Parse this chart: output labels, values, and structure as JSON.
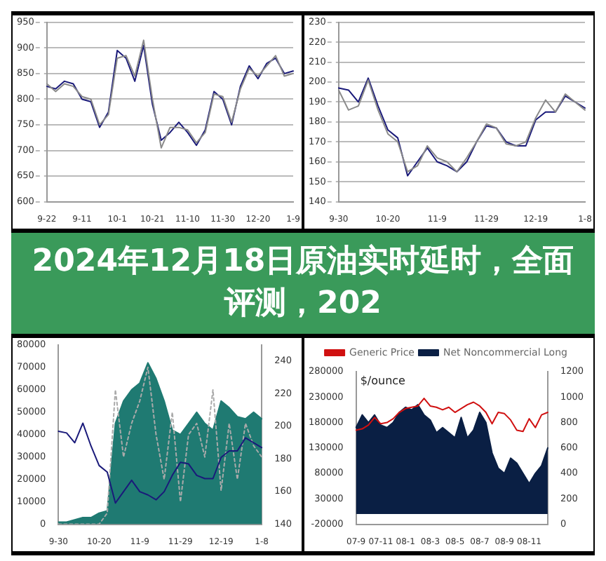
{
  "chart_data": [
    {
      "type": "line",
      "categories": [
        "9-22",
        null,
        null,
        null,
        "9-11",
        null,
        null,
        null,
        "10-1",
        null,
        null,
        null,
        "10-21",
        null,
        null,
        null,
        "11-10",
        null,
        null,
        null,
        "11-30",
        null,
        null,
        null,
        "12-20",
        null,
        null,
        null,
        "1-9"
      ],
      "ylim": [
        600,
        950
      ],
      "yticks": [
        600,
        650,
        700,
        750,
        800,
        850,
        900,
        950
      ],
      "grid": "y",
      "marker": "none",
      "legend": false,
      "series": [
        {
          "color": "#8a8a8a",
          "values": [
            830,
            815,
            830,
            825,
            805,
            800,
            750,
            770,
            880,
            885,
            845,
            915,
            800,
            705,
            745,
            745,
            740,
            715,
            735,
            810,
            805,
            755,
            820,
            860,
            845,
            865,
            885,
            845,
            850
          ]
        },
        {
          "color": "#1a1a7a",
          "values": [
            825,
            820,
            835,
            830,
            800,
            795,
            745,
            775,
            895,
            880,
            835,
            905,
            790,
            720,
            735,
            755,
            735,
            710,
            740,
            815,
            800,
            750,
            825,
            865,
            840,
            870,
            880,
            850,
            855
          ]
        }
      ]
    },
    {
      "type": "line",
      "categories": [
        "9-30",
        null,
        null,
        null,
        null,
        "10-20",
        null,
        null,
        null,
        null,
        "11-9",
        null,
        null,
        null,
        null,
        "11-29",
        null,
        null,
        null,
        null,
        "12-19",
        null,
        null,
        null,
        null,
        "1-8"
      ],
      "ylim": [
        140,
        230
      ],
      "yticks": [
        140,
        150,
        160,
        170,
        180,
        190,
        200,
        210,
        220,
        230
      ],
      "grid": "y",
      "marker": "none",
      "legend": false,
      "series": [
        {
          "color": "#8a8a8a",
          "values": [
            196,
            186,
            188,
            201,
            186,
            174,
            170,
            155,
            158,
            168,
            162,
            160,
            155,
            162,
            170,
            179,
            177,
            169,
            168,
            170,
            182,
            191,
            185,
            194,
            190,
            186
          ]
        },
        {
          "color": "#1a1a7a",
          "values": [
            197,
            196,
            190,
            202,
            188,
            176,
            172,
            153,
            160,
            167,
            160,
            158,
            155,
            160,
            170,
            178,
            177,
            170,
            168,
            168,
            181,
            185,
            185,
            193,
            190,
            187
          ]
        }
      ]
    },
    {
      "type": "other",
      "title": "2024年12月18日原油实时延时，全面评测，202"
    },
    {
      "type": "line",
      "categories": [
        "9-30",
        null,
        null,
        null,
        null,
        "10-20",
        null,
        null,
        null,
        null,
        "11-9",
        null,
        null,
        null,
        null,
        "11-29",
        null,
        null,
        null,
        null,
        "12-19",
        null,
        null,
        null,
        null,
        "1-8"
      ],
      "ylim": [
        0,
        80000
      ],
      "yticks": [
        0,
        10000,
        20000,
        30000,
        40000,
        50000,
        60000,
        70000,
        80000
      ],
      "y2lim": [
        140,
        250
      ],
      "y2ticks": [
        140,
        160,
        180,
        200,
        220,
        240
      ],
      "grid": false,
      "marker": "none",
      "legend": false,
      "series": [
        {
          "type": "area",
          "color": "#1f7a72",
          "values": [
            1000,
            1000,
            2000,
            3000,
            3000,
            5000,
            6000,
            45000,
            55000,
            60000,
            63000,
            72000,
            65000,
            55000,
            42000,
            40000,
            45000,
            50000,
            45000,
            42000,
            55000,
            52000,
            48000,
            47000,
            50000,
            47000
          ]
        },
        {
          "color": "#1a1a7a",
          "axis": "y2",
          "values": [
            197,
            196,
            190,
            202,
            188,
            176,
            172,
            153,
            160,
            167,
            160,
            158,
            155,
            160,
            170,
            178,
            177,
            170,
            168,
            168,
            181,
            185,
            185,
            193,
            190,
            187
          ]
        },
        {
          "color": "#aaaaaa",
          "line_style": "dotted",
          "values": [
            0,
            0,
            0,
            0,
            0,
            0,
            5000,
            60000,
            30000,
            45000,
            55000,
            70000,
            40000,
            20000,
            50000,
            10000,
            40000,
            45000,
            30000,
            60000,
            15000,
            45000,
            20000,
            45000,
            35000,
            30000
          ]
        }
      ]
    },
    {
      "type": "line",
      "ylabel": "$/ounce",
      "categories": [
        "07-9",
        null,
        null,
        null,
        "07-11",
        null,
        null,
        null,
        "08-1",
        null,
        null,
        null,
        "08-3",
        null,
        null,
        null,
        "08-5",
        null,
        null,
        null,
        "08-7",
        null,
        null,
        null,
        "08-9",
        null,
        null,
        null,
        "08-11",
        null,
        null,
        null
      ],
      "ylim": [
        -20000,
        280000
      ],
      "yticks": [
        -20000,
        30000,
        80000,
        130000,
        180000,
        230000,
        280000
      ],
      "y2lim": [
        0,
        1200
      ],
      "y2ticks": [
        0,
        200,
        400,
        600,
        800,
        1000,
        1200
      ],
      "grid": false,
      "marker": "none",
      "legend": "top",
      "series": [
        {
          "type": "area",
          "name": "Net Noncommercial Long",
          "color": "#0a1f44",
          "values": [
            170000,
            195000,
            180000,
            195000,
            175000,
            170000,
            180000,
            200000,
            210000,
            205000,
            215000,
            195000,
            185000,
            160000,
            170000,
            160000,
            150000,
            190000,
            150000,
            165000,
            200000,
            180000,
            120000,
            90000,
            80000,
            110000,
            100000,
            80000,
            60000,
            80000,
            95000,
            130000
          ]
        },
        {
          "name": "Generic Price",
          "color": "#d01010",
          "axis": "y2",
          "values": [
            740,
            750,
            780,
            840,
            790,
            800,
            830,
            880,
            910,
            920,
            930,
            990,
            930,
            920,
            900,
            920,
            880,
            910,
            940,
            960,
            930,
            880,
            790,
            880,
            870,
            820,
            740,
            730,
            830,
            760,
            860,
            880
          ]
        }
      ]
    }
  ]
}
